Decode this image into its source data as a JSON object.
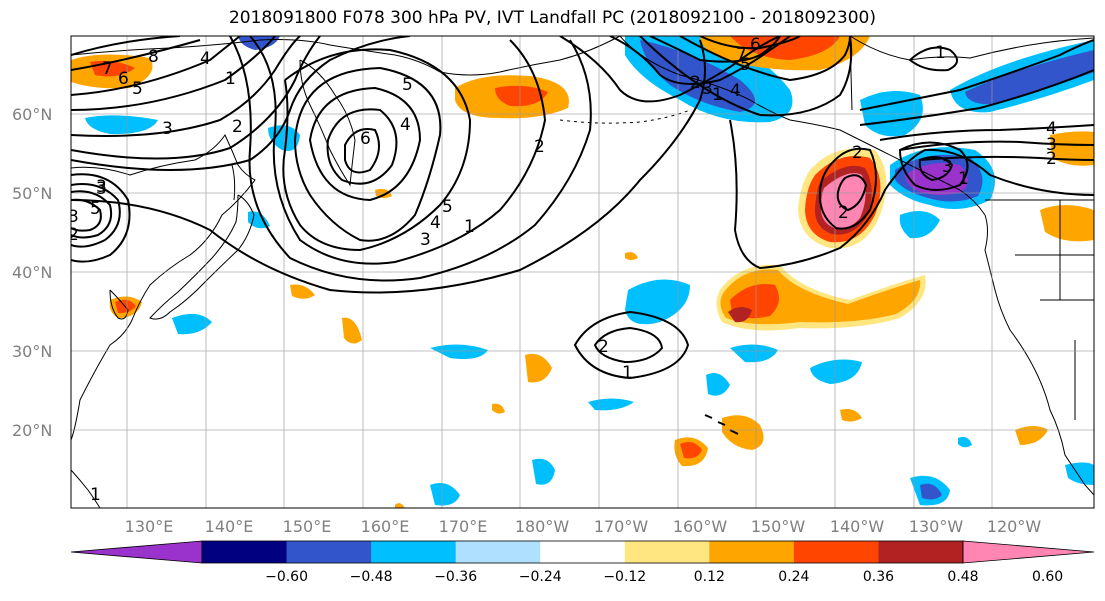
{
  "title": "2018091800 F078 300 hPa PV, IVT Landfall PC (2018092100 - 2018092300)",
  "lon_ticks": [
    "130°E",
    "140°E",
    "150°E",
    "160°E",
    "170°E",
    "180°W",
    "170°W",
    "160°W",
    "150°W",
    "140°W",
    "130°W",
    "120°W"
  ],
  "lat_ticks": [
    "60°N",
    "50°N",
    "40°N",
    "30°N",
    "20°N"
  ],
  "colorbar": {
    "ticks": [
      "−0.60",
      "−0.48",
      "−0.36",
      "−0.24",
      "−0.12",
      "0.12",
      "0.24",
      "0.36",
      "0.48",
      "0.60"
    ],
    "colors": [
      "#9933cc",
      "#000080",
      "#3355cc",
      "#00bfff",
      "#b0e0ff",
      "#ffffff",
      "#ffe680",
      "#ffa500",
      "#ff4500",
      "#b22222",
      "#ff85b3"
    ]
  },
  "contour_labels": [
    "8",
    "7",
    "6",
    "5",
    "1",
    "2",
    "3",
    "4",
    "5",
    "6",
    "4",
    "3",
    "3",
    "5",
    "1",
    "2",
    "4",
    "5",
    "1",
    "2",
    "7",
    "6",
    "5",
    "4",
    "3",
    "1",
    "2",
    "2",
    "3",
    "1",
    "4",
    "3",
    "2",
    "1",
    "2",
    "3",
    "3",
    "2",
    "1"
  ]
}
